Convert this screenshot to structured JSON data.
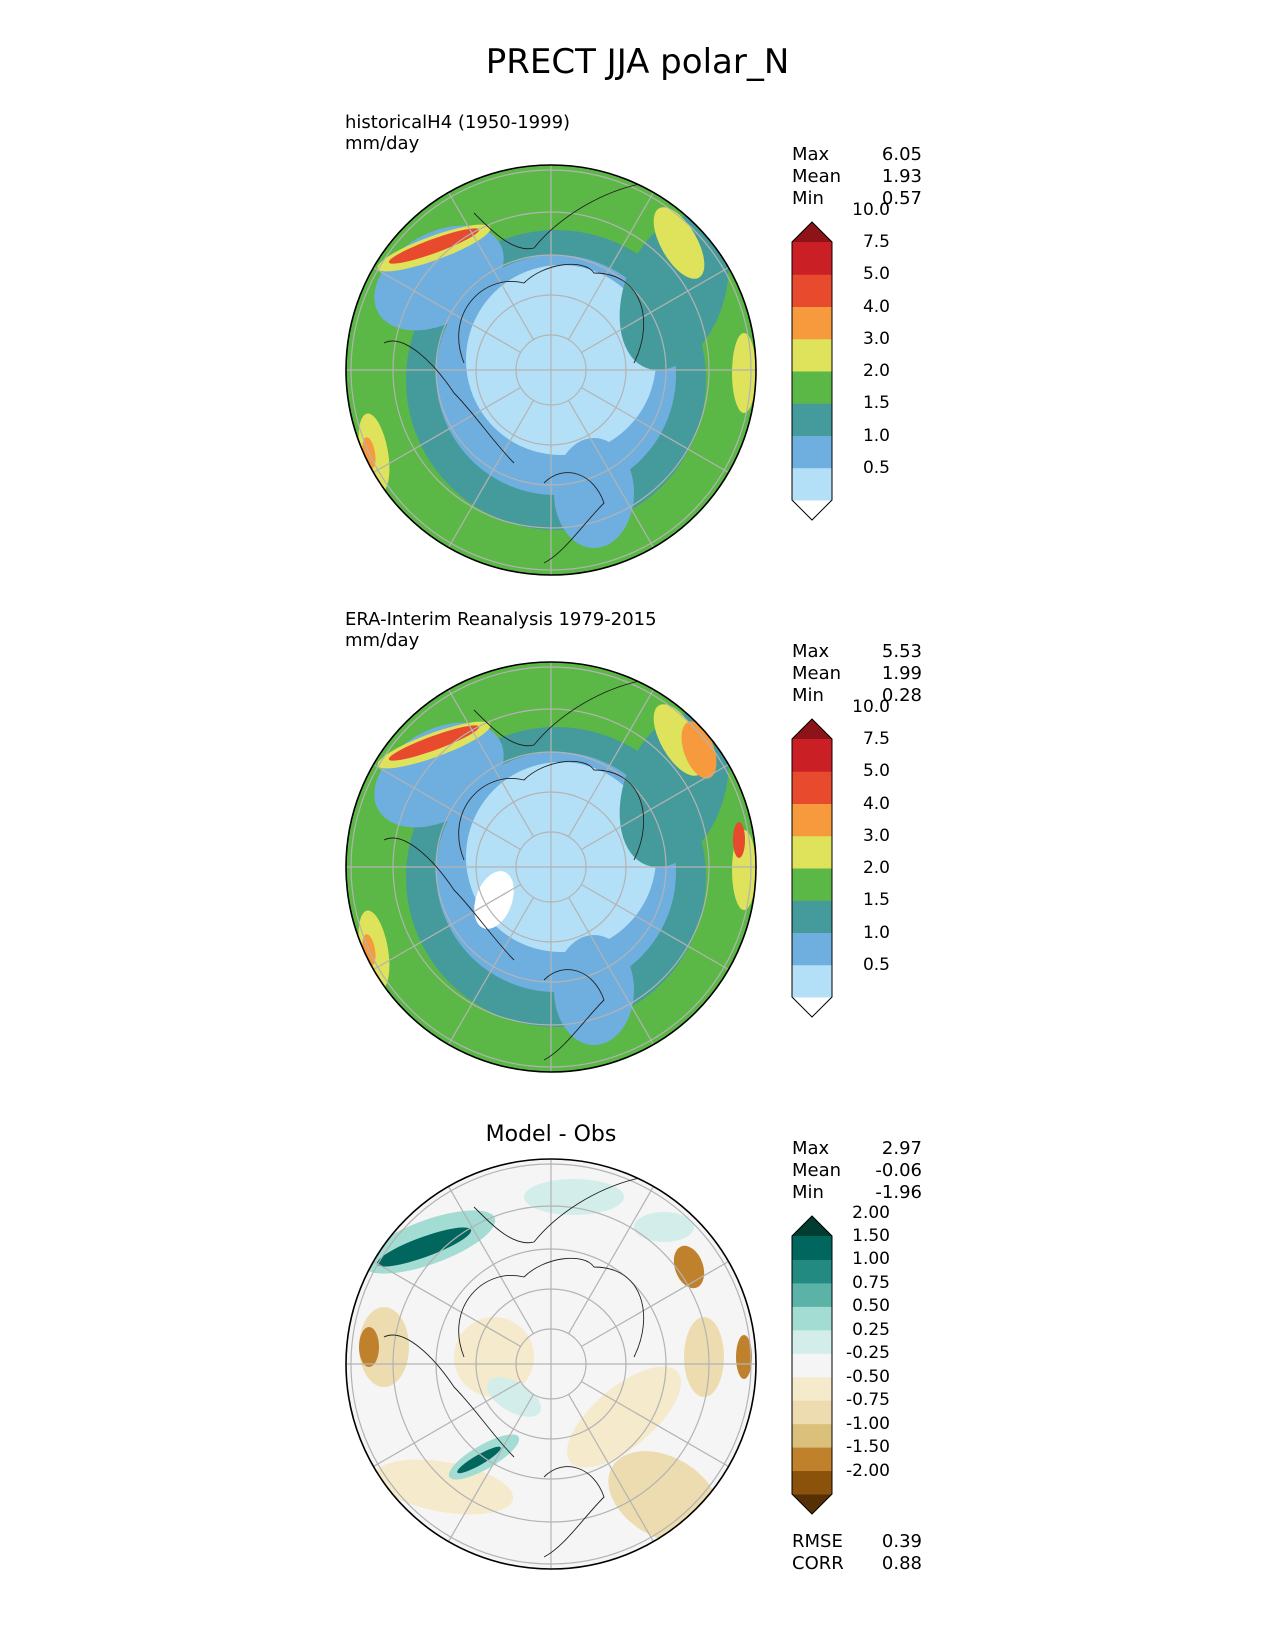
{
  "title": "PRECT JJA polar_N",
  "panels": [
    {
      "id": "test",
      "title_lines": [
        "historicalH4 (1950-1999)",
        "mm/day"
      ],
      "stats": [
        {
          "label": "Max",
          "value": "6.05"
        },
        {
          "label": "Mean",
          "value": "1.93"
        },
        {
          "label": "Min",
          "value": "0.57"
        }
      ],
      "colorbar": {
        "colors": [
          "#ffffff",
          "#b4e0f7",
          "#6fafe0",
          "#459b9b",
          "#5bb846",
          "#dfe25b",
          "#f69a3d",
          "#e84a2e",
          "#cb1f26",
          "#8c1418"
        ],
        "ticks": [
          "0.5",
          "1.0",
          "1.5",
          "2.0",
          "3.0",
          "4.0",
          "5.0",
          "7.5",
          "10.0"
        ]
      }
    },
    {
      "id": "ref",
      "title_lines": [
        "ERA-Interim Reanalysis 1979-2015",
        "mm/day"
      ],
      "stats": [
        {
          "label": "Max",
          "value": "5.53"
        },
        {
          "label": "Mean",
          "value": "1.99"
        },
        {
          "label": "Min",
          "value": "0.28"
        }
      ],
      "colorbar": {
        "colors": [
          "#ffffff",
          "#b4e0f7",
          "#6fafe0",
          "#459b9b",
          "#5bb846",
          "#dfe25b",
          "#f69a3d",
          "#e84a2e",
          "#cb1f26",
          "#8c1418"
        ],
        "ticks": [
          "0.5",
          "1.0",
          "1.5",
          "2.0",
          "3.0",
          "4.0",
          "5.0",
          "7.5",
          "10.0"
        ]
      }
    },
    {
      "id": "diff",
      "title": "Model - Obs",
      "stats": [
        {
          "label": "Max",
          "value": "2.97"
        },
        {
          "label": "Mean",
          "value": "-0.06"
        },
        {
          "label": "Min",
          "value": "-1.96"
        }
      ],
      "colorbar": {
        "colors": [
          "#553005",
          "#8a520b",
          "#bf812c",
          "#dbc07c",
          "#ecdcb0",
          "#f5eacb",
          "#f5f5f5",
          "#d3eeea",
          "#a2dcd2",
          "#5bb2a7",
          "#228a81",
          "#00665e",
          "#003c30"
        ],
        "ticks": [
          "-2.00",
          "-1.50",
          "-1.00",
          "-0.75",
          "-0.50",
          "-0.25",
          "0.25",
          "0.50",
          "0.75",
          "1.00",
          "1.50",
          "2.00"
        ]
      },
      "metrics": [
        {
          "label": "RMSE",
          "value": "0.39"
        },
        {
          "label": "CORR",
          "value": "0.88"
        }
      ]
    }
  ]
}
